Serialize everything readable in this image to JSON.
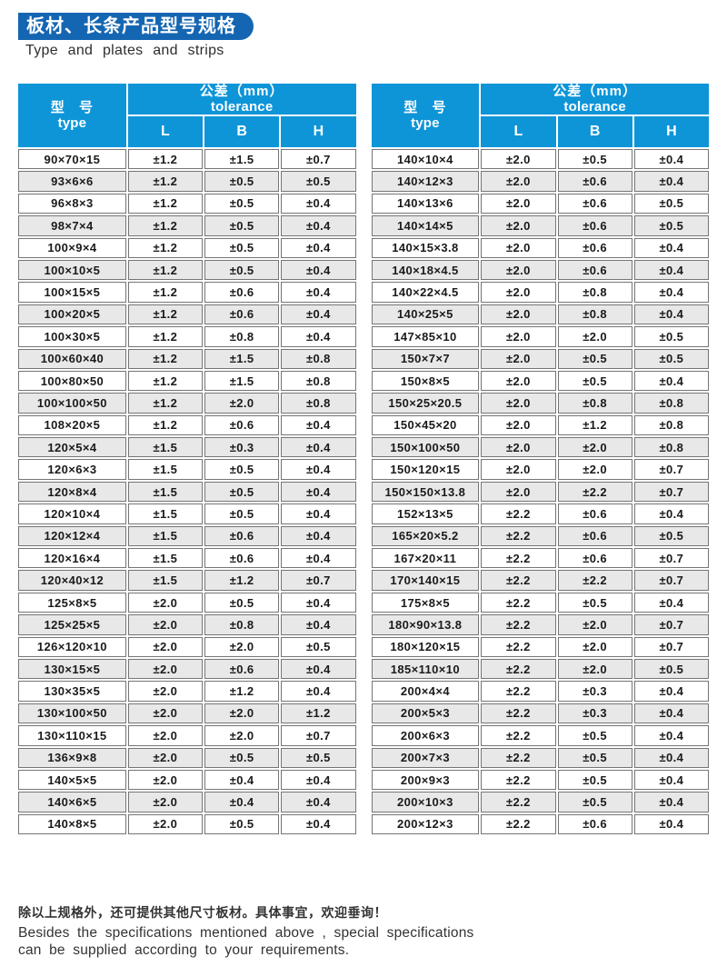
{
  "header": {
    "title_cn": "板材、长条产品型号规格",
    "subtitle_en": "Type and plates and strips"
  },
  "table_header": {
    "type_cn": "型 号",
    "type_en": "type",
    "tolerance_cn": "公差（mm）",
    "tolerance_en": "tolerance",
    "col_l": "L",
    "col_b": "B",
    "col_h": "H"
  },
  "tables": [
    {
      "rows": [
        [
          "90×70×15",
          "±1.2",
          "±1.5",
          "±0.7"
        ],
        [
          "93×6×6",
          "±1.2",
          "±0.5",
          "±0.5"
        ],
        [
          "96×8×3",
          "±1.2",
          "±0.5",
          "±0.4"
        ],
        [
          "98×7×4",
          "±1.2",
          "±0.5",
          "±0.4"
        ],
        [
          "100×9×4",
          "±1.2",
          "±0.5",
          "±0.4"
        ],
        [
          "100×10×5",
          "±1.2",
          "±0.5",
          "±0.4"
        ],
        [
          "100×15×5",
          "±1.2",
          "±0.6",
          "±0.4"
        ],
        [
          "100×20×5",
          "±1.2",
          "±0.6",
          "±0.4"
        ],
        [
          "100×30×5",
          "±1.2",
          "±0.8",
          "±0.4"
        ],
        [
          "100×60×40",
          "±1.2",
          "±1.5",
          "±0.8"
        ],
        [
          "100×80×50",
          "±1.2",
          "±1.5",
          "±0.8"
        ],
        [
          "100×100×50",
          "±1.2",
          "±2.0",
          "±0.8"
        ],
        [
          "108×20×5",
          "±1.2",
          "±0.6",
          "±0.4"
        ],
        [
          "120×5×4",
          "±1.5",
          "±0.3",
          "±0.4"
        ],
        [
          "120×6×3",
          "±1.5",
          "±0.5",
          "±0.4"
        ],
        [
          "120×8×4",
          "±1.5",
          "±0.5",
          "±0.4"
        ],
        [
          "120×10×4",
          "±1.5",
          "±0.5",
          "±0.4"
        ],
        [
          "120×12×4",
          "±1.5",
          "±0.6",
          "±0.4"
        ],
        [
          "120×16×4",
          "±1.5",
          "±0.6",
          "±0.4"
        ],
        [
          "120×40×12",
          "±1.5",
          "±1.2",
          "±0.7"
        ],
        [
          "125×8×5",
          "±2.0",
          "±0.5",
          "±0.4"
        ],
        [
          "125×25×5",
          "±2.0",
          "±0.8",
          "±0.4"
        ],
        [
          "126×120×10",
          "±2.0",
          "±2.0",
          "±0.5"
        ],
        [
          "130×15×5",
          "±2.0",
          "±0.6",
          "±0.4"
        ],
        [
          "130×35×5",
          "±2.0",
          "±1.2",
          "±0.4"
        ],
        [
          "130×100×50",
          "±2.0",
          "±2.0",
          "±1.2"
        ],
        [
          "130×110×15",
          "±2.0",
          "±2.0",
          "±0.7"
        ],
        [
          "136×9×8",
          "±2.0",
          "±0.5",
          "±0.5"
        ],
        [
          "140×5×5",
          "±2.0",
          "±0.4",
          "±0.4"
        ],
        [
          "140×6×5",
          "±2.0",
          "±0.4",
          "±0.4"
        ],
        [
          "140×8×5",
          "±2.0",
          "±0.5",
          "±0.4"
        ]
      ]
    },
    {
      "rows": [
        [
          "140×10×4",
          "±2.0",
          "±0.5",
          "±0.4"
        ],
        [
          "140×12×3",
          "±2.0",
          "±0.6",
          "±0.4"
        ],
        [
          "140×13×6",
          "±2.0",
          "±0.6",
          "±0.5"
        ],
        [
          "140×14×5",
          "±2.0",
          "±0.6",
          "±0.5"
        ],
        [
          "140×15×3.8",
          "±2.0",
          "±0.6",
          "±0.4"
        ],
        [
          "140×18×4.5",
          "±2.0",
          "±0.6",
          "±0.4"
        ],
        [
          "140×22×4.5",
          "±2.0",
          "±0.8",
          "±0.4"
        ],
        [
          "140×25×5",
          "±2.0",
          "±0.8",
          "±0.4"
        ],
        [
          "147×85×10",
          "±2.0",
          "±2.0",
          "±0.5"
        ],
        [
          "150×7×7",
          "±2.0",
          "±0.5",
          "±0.5"
        ],
        [
          "150×8×5",
          "±2.0",
          "±0.5",
          "±0.4"
        ],
        [
          "150×25×20.5",
          "±2.0",
          "±0.8",
          "±0.8"
        ],
        [
          "150×45×20",
          "±2.0",
          "±1.2",
          "±0.8"
        ],
        [
          "150×100×50",
          "±2.0",
          "±2.0",
          "±0.8"
        ],
        [
          "150×120×15",
          "±2.0",
          "±2.0",
          "±0.7"
        ],
        [
          "150×150×13.8",
          "±2.0",
          "±2.2",
          "±0.7"
        ],
        [
          "152×13×5",
          "±2.2",
          "±0.6",
          "±0.4"
        ],
        [
          "165×20×5.2",
          "±2.2",
          "±0.6",
          "±0.5"
        ],
        [
          "167×20×11",
          "±2.2",
          "±0.6",
          "±0.7"
        ],
        [
          "170×140×15",
          "±2.2",
          "±2.2",
          "±0.7"
        ],
        [
          "175×8×5",
          "±2.2",
          "±0.5",
          "±0.4"
        ],
        [
          "180×90×13.8",
          "±2.2",
          "±2.0",
          "±0.7"
        ],
        [
          "180×120×15",
          "±2.2",
          "±2.0",
          "±0.7"
        ],
        [
          "185×110×10",
          "±2.2",
          "±2.0",
          "±0.5"
        ],
        [
          "200×4×4",
          "±2.2",
          "±0.3",
          "±0.4"
        ],
        [
          "200×5×3",
          "±2.2",
          "±0.3",
          "±0.4"
        ],
        [
          "200×6×3",
          "±2.2",
          "±0.5",
          "±0.4"
        ],
        [
          "200×7×3",
          "±2.2",
          "±0.5",
          "±0.4"
        ],
        [
          "200×9×3",
          "±2.2",
          "±0.5",
          "±0.4"
        ],
        [
          "200×10×3",
          "±2.2",
          "±0.5",
          "±0.4"
        ],
        [
          "200×12×3",
          "±2.2",
          "±0.6",
          "±0.4"
        ]
      ]
    }
  ],
  "footer": {
    "line_cn": "除以上规格外，还可提供其他尺寸板材。具体事宜，欢迎垂询！",
    "line_en_1": "Besides the specifications mentioned above , special specifications",
    "line_en_2": "can be supplied according to your requirements."
  },
  "colors": {
    "banner_blue": "#1566b2",
    "table_header_blue": "#0e95d8",
    "row_alt_gray": "#e8e8e8",
    "cell_border_gray": "#757575"
  }
}
